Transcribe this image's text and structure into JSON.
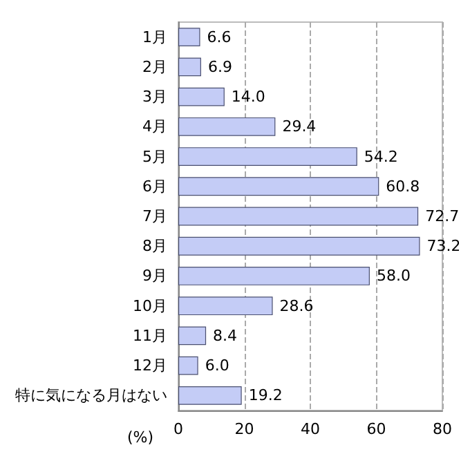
{
  "chart_data": {
    "type": "bar",
    "orientation": "horizontal",
    "categories": [
      "1月",
      "2月",
      "3月",
      "4月",
      "5月",
      "6月",
      "7月",
      "8月",
      "9月",
      "10月",
      "11月",
      "12月",
      "特に気になる月はない"
    ],
    "values": [
      6.6,
      6.9,
      14.0,
      29.4,
      54.2,
      60.8,
      72.7,
      73.2,
      58.0,
      28.6,
      8.4,
      6.0,
      19.2
    ],
    "value_labels": [
      "6.6",
      "6.9",
      "14.0",
      "29.4",
      "54.2",
      "60.8",
      "72.7",
      "73.2",
      "58.0",
      "28.6",
      "8.4",
      "6.0",
      "19.2"
    ],
    "color": "#c4ccf6",
    "xlim": [
      0,
      80
    ],
    "xticks": [
      0,
      20,
      40,
      60,
      80
    ],
    "xlabel": "(%)",
    "grid": "x"
  }
}
